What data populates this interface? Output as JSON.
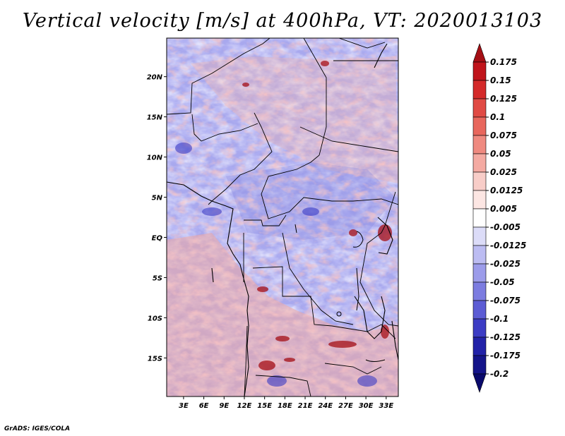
{
  "title": "Vertical velocity [m/s] at 400hPa, VT: 2020013103",
  "credit": "GrADS: IGES/COLA",
  "map": {
    "lat_labels": [
      "20N",
      "15N",
      "10N",
      "5N",
      "EQ",
      "5S",
      "10S",
      "15S"
    ],
    "lat_values": [
      20,
      15,
      10,
      5,
      0,
      -5,
      -10,
      -15
    ],
    "lon_labels": [
      "3E",
      "6E",
      "9E",
      "12E",
      "15E",
      "18E",
      "21E",
      "24E",
      "27E",
      "30E",
      "33E"
    ],
    "lon_values": [
      3,
      6,
      9,
      12,
      15,
      18,
      21,
      24,
      27,
      30,
      33
    ],
    "lon_range": [
      0.5,
      34.8
    ],
    "lat_range": [
      -19.8,
      24.8
    ]
  },
  "colorbar": {
    "levels": [
      "0.175",
      "0.15",
      "0.125",
      "0.1",
      "0.075",
      "0.05",
      "0.025",
      "0.0125",
      "0.005",
      "-0.005",
      "-0.0125",
      "-0.025",
      "-0.05",
      "-0.075",
      "-0.1",
      "-0.125",
      "-0.175",
      "-0.2"
    ],
    "colors": [
      "#a50f15",
      "#c0141b",
      "#d42a2a",
      "#e04a44",
      "#e8675d",
      "#ef8a80",
      "#f4aaa2",
      "#f8cdc8",
      "#fce6e3",
      "#ffffff",
      "#dcdcf8",
      "#bcbcf2",
      "#9c9cea",
      "#7c7ce0",
      "#5c5cd4",
      "#3c3cc4",
      "#2222a8",
      "#15158a",
      "#0a0a6c"
    ]
  }
}
